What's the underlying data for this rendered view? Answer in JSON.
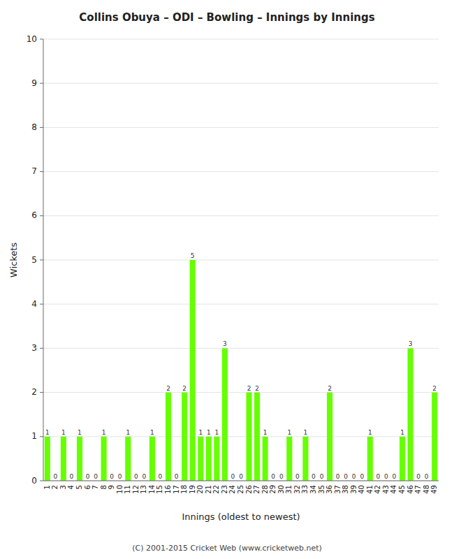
{
  "chart_data": {
    "type": "bar",
    "title": "Collins Obuya – ODI – Bowling – Innings by Innings",
    "xlabel": "Innings (oldest to newest)",
    "ylabel": "Wickets",
    "categories": [
      "1",
      "2",
      "3",
      "4",
      "5",
      "6",
      "7",
      "8",
      "9",
      "10",
      "11",
      "12",
      "13",
      "14",
      "15",
      "16",
      "17",
      "18",
      "19",
      "20",
      "21",
      "22",
      "23",
      "24",
      "25",
      "26",
      "27",
      "28",
      "29",
      "30",
      "31",
      "32",
      "33",
      "34",
      "35",
      "36",
      "37",
      "38",
      "39",
      "40",
      "41",
      "42",
      "43",
      "44",
      "45",
      "46",
      "47",
      "48",
      "49"
    ],
    "values": [
      1,
      0,
      1,
      0,
      1,
      0,
      0,
      1,
      0,
      0,
      1,
      0,
      0,
      1,
      0,
      2,
      0,
      2,
      5,
      1,
      1,
      1,
      3,
      0,
      0,
      2,
      2,
      1,
      0,
      0,
      1,
      0,
      1,
      0,
      0,
      2,
      0,
      0,
      0,
      0,
      1,
      0,
      0,
      0,
      1,
      3,
      0,
      0,
      2
    ],
    "color": "#66ff00",
    "ylim": [
      0,
      10
    ],
    "yticks": [
      0,
      1,
      2,
      3,
      4,
      5,
      6,
      7,
      8,
      9,
      10
    ],
    "grid": true,
    "data_labels": true,
    "annotations": [
      "(C) 2001-2015 Cricket Web (www.cricketweb.net)"
    ]
  }
}
